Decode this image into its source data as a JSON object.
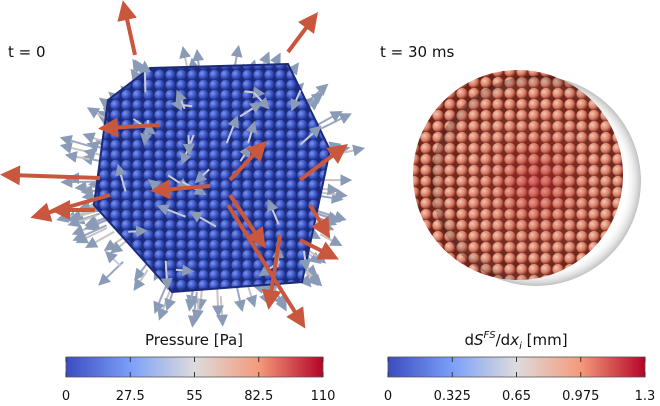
{
  "panels": [
    {
      "time_label": "t = 0",
      "colorbar": {
        "title": "Pressure [Pa]",
        "range": [
          0,
          110
        ],
        "ticks": [
          0,
          27.5,
          55,
          82.5,
          110
        ]
      }
    },
    {
      "time_label": "t = 30 ms",
      "colorbar": {
        "title": [
          "d",
          "S",
          "FS",
          "/d",
          "x",
          "i",
          " [mm]"
        ],
        "range": [
          0,
          1.3
        ],
        "ticks": [
          0,
          0.325,
          0.65,
          0.975,
          1.3
        ]
      }
    }
  ]
}
